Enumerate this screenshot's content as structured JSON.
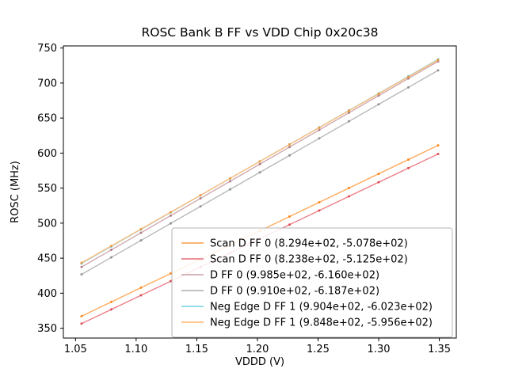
{
  "chart_data": {
    "type": "scatter",
    "title": "ROSC Bank B FF vs VDD Chip 0x20c38",
    "xlabel": "VDDD (V)",
    "ylabel": "ROSC (MHz)",
    "xlim": [
      1.04,
      1.364
    ],
    "ylim": [
      336,
      753
    ],
    "xticks": [
      1.05,
      1.1,
      1.15,
      1.2,
      1.25,
      1.3,
      1.35
    ],
    "xtick_labels": [
      "1.05",
      "1.10",
      "1.15",
      "1.20",
      "1.25",
      "1.30",
      "1.35"
    ],
    "yticks": [
      350,
      400,
      450,
      500,
      550,
      600,
      650,
      700,
      750
    ],
    "grid": false,
    "legend_loc": "lower right",
    "x_points": [
      1.055,
      1.0795,
      1.104,
      1.1285,
      1.153,
      1.1775,
      1.202,
      1.2265,
      1.251,
      1.2755,
      1.3,
      1.3245,
      1.349
    ],
    "series": [
      {
        "name": "Scan D FF 0 (8.294e+02, -5.078e+02)",
        "slope": 829.4,
        "intercept": -507.8,
        "line_color": "#ffab5e",
        "dot_color": "#ff7f0e"
      },
      {
        "name": "Scan D FF 0 (8.238e+02, -5.125e+02)",
        "slope": 823.8,
        "intercept": -512.5,
        "line_color": "#ec8088",
        "dot_color": "#d9404a"
      },
      {
        "name": "D FF 0 (9.985e+02, -6.160e+02)",
        "slope": 998.5,
        "intercept": -616.0,
        "line_color": "#d0abb0",
        "dot_color": "#a8787d"
      },
      {
        "name": "D FF 0 (9.910e+02, -6.187e+02)",
        "slope": 991.0,
        "intercept": -618.7,
        "line_color": "#b8b8b8",
        "dot_color": "#8a8a8a"
      },
      {
        "name": "Neg Edge D FF 1 (9.904e+02, -6.023e+02)",
        "slope": 990.4,
        "intercept": -602.3,
        "line_color": "#84d7e2",
        "dot_color": "#2ab0c5"
      },
      {
        "name": "Neg Edge D FF 1 (9.848e+02, -5.956e+02)",
        "slope": 984.8,
        "intercept": -595.6,
        "line_color": "#ffbe7d",
        "dot_color": "#ff9933"
      }
    ]
  }
}
